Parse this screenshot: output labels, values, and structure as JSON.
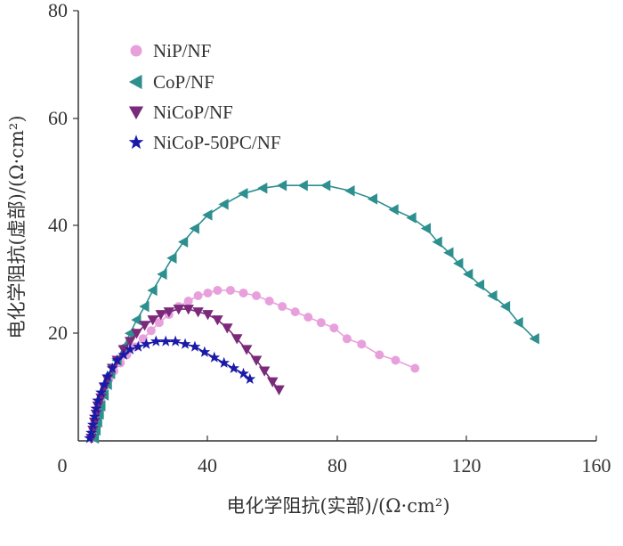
{
  "chart_data": {
    "type": "scatter",
    "xlabel": "电化学阻抗(实部)/(Ω·cm²)",
    "ylabel": "电化学阻抗(虚部)/(Ω·cm²)",
    "xlim": [
      0,
      160
    ],
    "ylim": [
      0,
      80
    ],
    "x_ticks": [
      "0",
      "40",
      "80",
      "120",
      "160"
    ],
    "y_ticks": [
      "20",
      "40",
      "60",
      "80"
    ],
    "legend_position": "top-left",
    "series": [
      {
        "name": "NiP/NF",
        "color": "#e8a0dc",
        "marker": "circle",
        "x": [
          4,
          4.5,
          5,
          6,
          7,
          8,
          9.5,
          11,
          13,
          15,
          17.5,
          20,
          22.5,
          25,
          28,
          31,
          34,
          37,
          40,
          43,
          47,
          51,
          55,
          59,
          63,
          67,
          71,
          75,
          79,
          83,
          87.5,
          93,
          98,
          104
        ],
        "y": [
          0.5,
          2,
          3.5,
          5.5,
          7.5,
          9.5,
          11.5,
          13,
          14.5,
          16,
          17.5,
          19,
          20.5,
          22,
          23.5,
          25,
          26,
          27,
          27.5,
          28,
          28,
          27.5,
          27,
          26,
          25,
          24,
          23,
          22,
          21,
          19,
          18,
          16,
          15,
          13.5
        ]
      },
      {
        "name": "CoP/NF",
        "color": "#2e8f8f",
        "marker": "triangle-left",
        "x": [
          5,
          5.5,
          6,
          6.5,
          7,
          8,
          9,
          10,
          12,
          14,
          16,
          18,
          20.5,
          23,
          26,
          29,
          32.5,
          36,
          40,
          45,
          51,
          57,
          63,
          69.5,
          76.5,
          84,
          91,
          97.5,
          103,
          107.5,
          111,
          114.5,
          117.5,
          120.5,
          124,
          128,
          132,
          136,
          141
        ],
        "y": [
          0.5,
          2,
          3.5,
          5,
          6.5,
          8.5,
          10.5,
          12.5,
          15,
          17.5,
          20,
          22.5,
          25,
          28,
          31,
          34,
          37,
          39.5,
          42,
          44,
          46,
          47,
          47.5,
          47.5,
          47.5,
          46.5,
          45,
          43,
          41.5,
          39.5,
          37,
          35,
          33,
          31,
          29,
          27,
          25,
          22,
          19
        ]
      },
      {
        "name": "NiCoP/NF",
        "color": "#7b2a7b",
        "marker": "triangle-down",
        "x": [
          4,
          4.5,
          5,
          5.5,
          6,
          7,
          8,
          9,
          10.5,
          12,
          14,
          16,
          18,
          20.5,
          23,
          25.5,
          28,
          31,
          34,
          37,
          40,
          43,
          46,
          49,
          52,
          55,
          57.5,
          60,
          62
        ],
        "y": [
          0.5,
          2,
          3.5,
          5,
          6.5,
          8,
          10,
          11.5,
          13.5,
          15,
          17,
          18.5,
          20,
          21.5,
          22.5,
          23.5,
          24,
          24.5,
          24.5,
          24,
          23.5,
          22.5,
          21,
          19,
          17,
          15,
          13,
          11,
          9.5
        ]
      },
      {
        "name": "NiCoP-50PC/NF",
        "color": "#1a1aa8",
        "marker": "star",
        "x": [
          3.5,
          4,
          4.5,
          5,
          5.5,
          6,
          7,
          8,
          9,
          10.5,
          12,
          14,
          16,
          18.5,
          21,
          24,
          27,
          30,
          33,
          36,
          39,
          42,
          45,
          48,
          51,
          53
        ],
        "y": [
          0.5,
          1.5,
          3,
          4.5,
          6,
          7.5,
          9,
          10.5,
          12,
          13.5,
          15,
          16,
          17,
          17.5,
          18,
          18.5,
          18.5,
          18.5,
          18,
          17.5,
          16.5,
          15.5,
          14.5,
          13.5,
          12.5,
          11.5
        ]
      }
    ]
  }
}
